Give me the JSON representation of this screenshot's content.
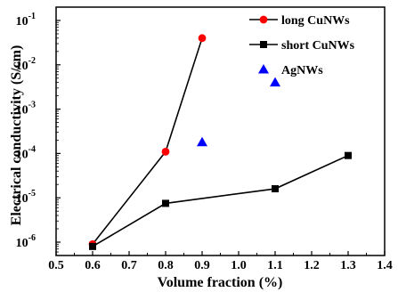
{
  "chart_data": {
    "type": "line",
    "xlabel": "Volume fraction (%)",
    "ylabel": "Electrical conductivity (S/cm)",
    "xlim": [
      0.5,
      1.4
    ],
    "ylim": [
      5e-07,
      0.2
    ],
    "yscale": "log",
    "x_ticks": [
      "0.5",
      "0.6",
      "0.7",
      "0.8",
      "0.9",
      "1.0",
      "1.1",
      "1.2",
      "1.3",
      "1.4"
    ],
    "y_ticks": [
      {
        "value": 1e-06,
        "base": "10",
        "exp": "-6"
      },
      {
        "value": 1e-05,
        "base": "10",
        "exp": "-5"
      },
      {
        "value": 0.0001,
        "base": "10",
        "exp": "-4"
      },
      {
        "value": 0.001,
        "base": "10",
        "exp": "-3"
      },
      {
        "value": 0.01,
        "base": "10",
        "exp": "-2"
      },
      {
        "value": 0.1,
        "base": "10",
        "exp": "-1"
      }
    ],
    "grid": false,
    "legend_position": "top-right",
    "series": [
      {
        "name": "long CuNWs",
        "color": "#ff0000",
        "marker": "circle",
        "line": true,
        "points": [
          [
            0.6,
            9e-07
          ],
          [
            0.8,
            0.00011
          ],
          [
            0.9,
            0.04
          ]
        ]
      },
      {
        "name": "short CuNWs",
        "color": "#000000",
        "marker": "square",
        "line": true,
        "points": [
          [
            0.6,
            8e-07
          ],
          [
            0.8,
            7.5e-06
          ],
          [
            1.1,
            1.6e-05
          ],
          [
            1.3,
            9e-05
          ]
        ]
      },
      {
        "name": "AgNWs",
        "color": "#0000ff",
        "marker": "triangle",
        "line": false,
        "points": [
          [
            0.9,
            0.00018
          ],
          [
            1.1,
            0.004
          ]
        ]
      }
    ]
  }
}
